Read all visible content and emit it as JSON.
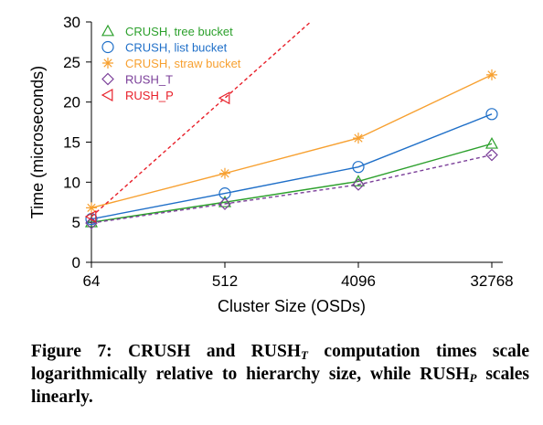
{
  "chart_data": {
    "type": "line",
    "xlabel": "Cluster Size (OSDs)",
    "ylabel": "Time (microseconds)",
    "categories": [
      "64",
      "512",
      "4096",
      "32768"
    ],
    "xscale": "log",
    "ylim": [
      0,
      30
    ],
    "yticks": [
      0,
      5,
      10,
      15,
      20,
      25,
      30
    ],
    "grid": false,
    "legend_position": "top-left",
    "series": [
      {
        "name": "CRUSH, tree bucket",
        "color": "#2ca02c",
        "marker": "triangle-up",
        "dash": "solid",
        "values": [
          5.0,
          7.5,
          10.1,
          14.8
        ]
      },
      {
        "name": "CRUSH, list bucket",
        "color": "#1f6fc8",
        "marker": "circle",
        "dash": "solid",
        "values": [
          5.4,
          8.6,
          11.9,
          18.5
        ]
      },
      {
        "name": "CRUSH, straw bucket",
        "color": "#f7a030",
        "marker": "star",
        "dash": "solid",
        "values": [
          6.8,
          11.1,
          15.5,
          23.4
        ]
      },
      {
        "name": "RUSH_T",
        "color": "#7b3f99",
        "marker": "diamond",
        "dash": "dashed",
        "values": [
          4.9,
          7.3,
          9.7,
          13.4
        ]
      },
      {
        "name": "RUSH_P",
        "color": "#e8202a",
        "marker": "triangle-left",
        "dash": "dashed",
        "values": [
          5.7,
          20.5,
          null,
          null
        ],
        "extends_beyond_ylim": true
      }
    ]
  },
  "caption": {
    "part1": "Figure 7: CRUSH and RUSH",
    "sub1": "T",
    "part2": " computation times scale logarithmically relative to hierarchy size, while RUSH",
    "sub2": "P",
    "part3": " scales linearly."
  }
}
